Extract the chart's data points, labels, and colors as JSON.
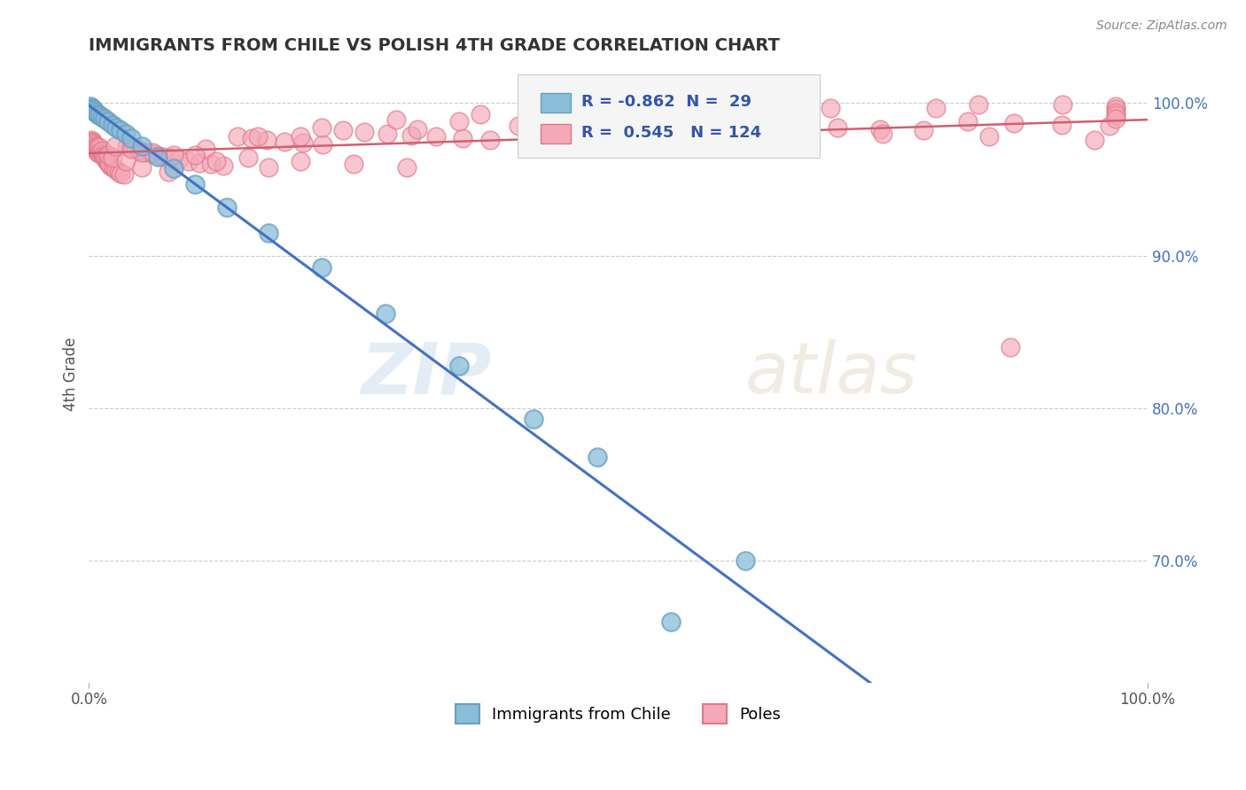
{
  "title": "IMMIGRANTS FROM CHILE VS POLISH 4TH GRADE CORRELATION CHART",
  "source_text": "Source: ZipAtlas.com",
  "ylabel": "4th Grade",
  "xlim": [
    0.0,
    1.0
  ],
  "ylim": [
    0.62,
    1.025
  ],
  "yticks": [
    0.7,
    0.8,
    0.9,
    1.0
  ],
  "ytick_labels": [
    "70.0%",
    "80.0%",
    "90.0%",
    "100.0%"
  ],
  "watermark_zip": "ZIP",
  "watermark_atlas": "atlas",
  "chile_color": "#89bdd8",
  "chile_edge_color": "#6aa0c0",
  "poles_color": "#f5a8b8",
  "poles_edge_color": "#e07888",
  "chile_line_color": "#4472c4",
  "poles_line_color": "#d06070",
  "chile_R": -0.862,
  "chile_N": 29,
  "poles_R": 0.545,
  "poles_N": 124,
  "legend_chile_label": "Immigrants from Chile",
  "legend_poles_label": "Poles",
  "chile_scatter_x": [
    0.001,
    0.002,
    0.003,
    0.004,
    0.005,
    0.006,
    0.008,
    0.01,
    0.012,
    0.015,
    0.018,
    0.022,
    0.026,
    0.03,
    0.035,
    0.04,
    0.05,
    0.065,
    0.08,
    0.1,
    0.13,
    0.17,
    0.22,
    0.28,
    0.35,
    0.48,
    0.62,
    0.42,
    0.55
  ],
  "chile_scatter_y": [
    0.998,
    0.997,
    0.996,
    0.996,
    0.995,
    0.994,
    0.993,
    0.992,
    0.991,
    0.99,
    0.988,
    0.986,
    0.984,
    0.982,
    0.98,
    0.977,
    0.972,
    0.965,
    0.957,
    0.947,
    0.932,
    0.915,
    0.892,
    0.862,
    0.828,
    0.768,
    0.7,
    0.793,
    0.66
  ],
  "poles_scatter_x": [
    0.001,
    0.002,
    0.002,
    0.003,
    0.003,
    0.004,
    0.004,
    0.005,
    0.005,
    0.006,
    0.006,
    0.007,
    0.007,
    0.008,
    0.008,
    0.009,
    0.01,
    0.01,
    0.011,
    0.012,
    0.012,
    0.013,
    0.014,
    0.015,
    0.016,
    0.017,
    0.018,
    0.019,
    0.02,
    0.022,
    0.024,
    0.026,
    0.028,
    0.03,
    0.033,
    0.036,
    0.04,
    0.044,
    0.048,
    0.053,
    0.058,
    0.064,
    0.07,
    0.077,
    0.085,
    0.094,
    0.104,
    0.115,
    0.127,
    0.14,
    0.154,
    0.168,
    0.185,
    0.202,
    0.221,
    0.24,
    0.26,
    0.282,
    0.304,
    0.328,
    0.353,
    0.379,
    0.406,
    0.434,
    0.463,
    0.494,
    0.526,
    0.559,
    0.594,
    0.63,
    0.668,
    0.707,
    0.747,
    0.788,
    0.83,
    0.874,
    0.919,
    0.964,
    0.018,
    0.022,
    0.035,
    0.05,
    0.075,
    0.11,
    0.16,
    0.22,
    0.29,
    0.37,
    0.46,
    0.2,
    0.31,
    0.43,
    0.56,
    0.7,
    0.84,
    0.43,
    0.56,
    0.68,
    0.8,
    0.92,
    0.97,
    0.97,
    0.97,
    0.97,
    0.97,
    0.35,
    0.45,
    0.55,
    0.65,
    0.75,
    0.85,
    0.95,
    0.05,
    0.1,
    0.15,
    0.2,
    0.25,
    0.3,
    0.025,
    0.04,
    0.06,
    0.08,
    0.12,
    0.17,
    0.87
  ],
  "poles_scatter_y": [
    0.975,
    0.974,
    0.976,
    0.973,
    0.975,
    0.972,
    0.974,
    0.971,
    0.973,
    0.97,
    0.972,
    0.969,
    0.971,
    0.968,
    0.97,
    0.967,
    0.969,
    0.971,
    0.968,
    0.967,
    0.969,
    0.966,
    0.965,
    0.964,
    0.963,
    0.962,
    0.961,
    0.96,
    0.959,
    0.958,
    0.957,
    0.956,
    0.955,
    0.954,
    0.953,
    0.972,
    0.971,
    0.97,
    0.969,
    0.968,
    0.967,
    0.966,
    0.965,
    0.964,
    0.963,
    0.962,
    0.961,
    0.96,
    0.959,
    0.978,
    0.977,
    0.976,
    0.975,
    0.974,
    0.973,
    0.982,
    0.981,
    0.98,
    0.979,
    0.978,
    0.977,
    0.976,
    0.985,
    0.984,
    0.983,
    0.982,
    0.981,
    0.98,
    0.987,
    0.986,
    0.985,
    0.984,
    0.983,
    0.982,
    0.988,
    0.987,
    0.986,
    0.985,
    0.966,
    0.964,
    0.962,
    0.958,
    0.955,
    0.97,
    0.978,
    0.984,
    0.989,
    0.993,
    0.996,
    0.978,
    0.983,
    0.988,
    0.993,
    0.997,
    0.999,
    0.987,
    0.991,
    0.995,
    0.997,
    0.999,
    0.998,
    0.996,
    0.994,
    0.992,
    0.99,
    0.988,
    0.986,
    0.984,
    0.982,
    0.98,
    0.978,
    0.976,
    0.968,
    0.966,
    0.964,
    0.962,
    0.96,
    0.958,
    0.972,
    0.97,
    0.968,
    0.966,
    0.962,
    0.958,
    0.84
  ]
}
